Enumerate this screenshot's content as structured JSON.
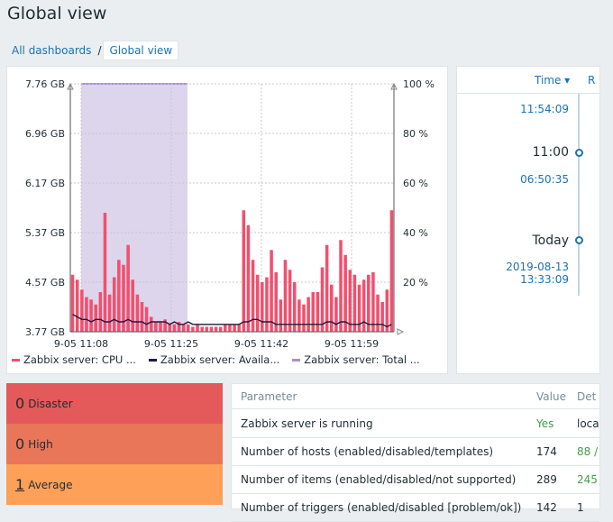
{
  "page": {
    "title": "Global view",
    "breadcrumb": {
      "parent": "All dashboards",
      "separator": "/",
      "current": "Global view"
    }
  },
  "graph": {
    "legend": [
      {
        "name": "Zabbix server: CPU ...",
        "color": "#f24f6e"
      },
      {
        "name": "Zabbix server: Availa...",
        "color": "#1f1a3d"
      },
      {
        "name": "Zabbix server: Total ...",
        "color": "#a98ed6"
      }
    ],
    "chart_data": {
      "type": "bar",
      "y_left_ticks": [
        "7.76 GB",
        "6.96 GB",
        "6.17 GB",
        "5.37 GB",
        "4.57 GB",
        "3.77 GB"
      ],
      "y_right_ticks": [
        "100 %",
        "80 %",
        "60 %",
        "40 %",
        "20 %"
      ],
      "x_ticks": [
        "9-05 11:08",
        "9-05 11:25",
        "9-05 11:42",
        "9-05 11:59"
      ],
      "ylim_right": [
        0,
        100
      ],
      "grid": true,
      "cpu_percent": [
        23,
        21,
        17,
        14,
        13,
        11,
        16,
        48,
        15,
        22,
        29,
        27,
        35,
        21,
        15,
        12,
        10,
        6,
        4,
        4,
        5,
        3,
        3,
        4,
        3,
        3,
        2,
        3,
        2,
        2,
        2,
        2,
        2,
        3,
        3,
        3,
        3,
        49,
        43,
        29,
        23,
        20,
        22,
        33,
        24,
        13,
        29,
        25,
        20,
        13,
        11,
        14,
        16,
        16,
        26,
        35,
        19,
        14,
        37,
        31,
        25,
        23,
        19,
        21,
        23,
        24,
        15,
        12,
        17,
        49
      ],
      "available_percent": [
        7,
        6,
        5,
        5,
        4,
        5,
        5,
        4,
        4,
        5,
        4,
        4,
        5,
        4,
        4,
        4,
        3,
        4,
        4,
        4,
        4,
        3,
        4,
        3,
        3,
        4,
        3,
        3,
        3,
        3,
        3,
        3,
        3,
        3,
        3,
        3,
        3,
        4,
        4,
        5,
        5,
        4,
        4,
        4,
        3,
        3,
        3,
        3,
        3,
        3,
        3,
        3,
        3,
        3,
        3,
        4,
        4,
        3,
        4,
        4,
        3,
        3,
        3,
        4,
        3,
        3,
        3,
        3,
        2,
        3
      ],
      "total_band": {
        "from": "9-05 11:08",
        "to": "9-05 11:25",
        "value_percent": 100
      }
    }
  },
  "timeline": {
    "column_time": "Time ▾",
    "column_next": "R",
    "entries": [
      {
        "kind": "link",
        "text": "11:54:09"
      },
      {
        "kind": "marker",
        "text": "11:00"
      },
      {
        "kind": "link",
        "text": "06:50:35"
      },
      {
        "kind": "marker",
        "text": "Today"
      },
      {
        "kind": "link",
        "text": "2019-08-13 13:33:09"
      }
    ]
  },
  "problems": [
    {
      "count": "0",
      "label": "Disaster",
      "color": "#e45959"
    },
    {
      "count": "0",
      "label": "High",
      "color": "#e97659"
    },
    {
      "count": "1",
      "label": "Average",
      "color": "#ffa059"
    }
  ],
  "sysinfo": {
    "headers": {
      "parameter": "Parameter",
      "value": "Value",
      "details": "Det"
    },
    "rows": [
      {
        "parameter": "Zabbix server is running",
        "value": "Yes",
        "details": "loca"
      },
      {
        "parameter": "Number of hosts (enabled/disabled/templates)",
        "value": "174",
        "details": "88 /"
      },
      {
        "parameter": "Number of items (enabled/disabled/not supported)",
        "value": "289",
        "details": "245"
      },
      {
        "parameter": "Number of triggers (enabled/disabled [problem/ok])",
        "value": "142",
        "details": "1"
      }
    ]
  }
}
